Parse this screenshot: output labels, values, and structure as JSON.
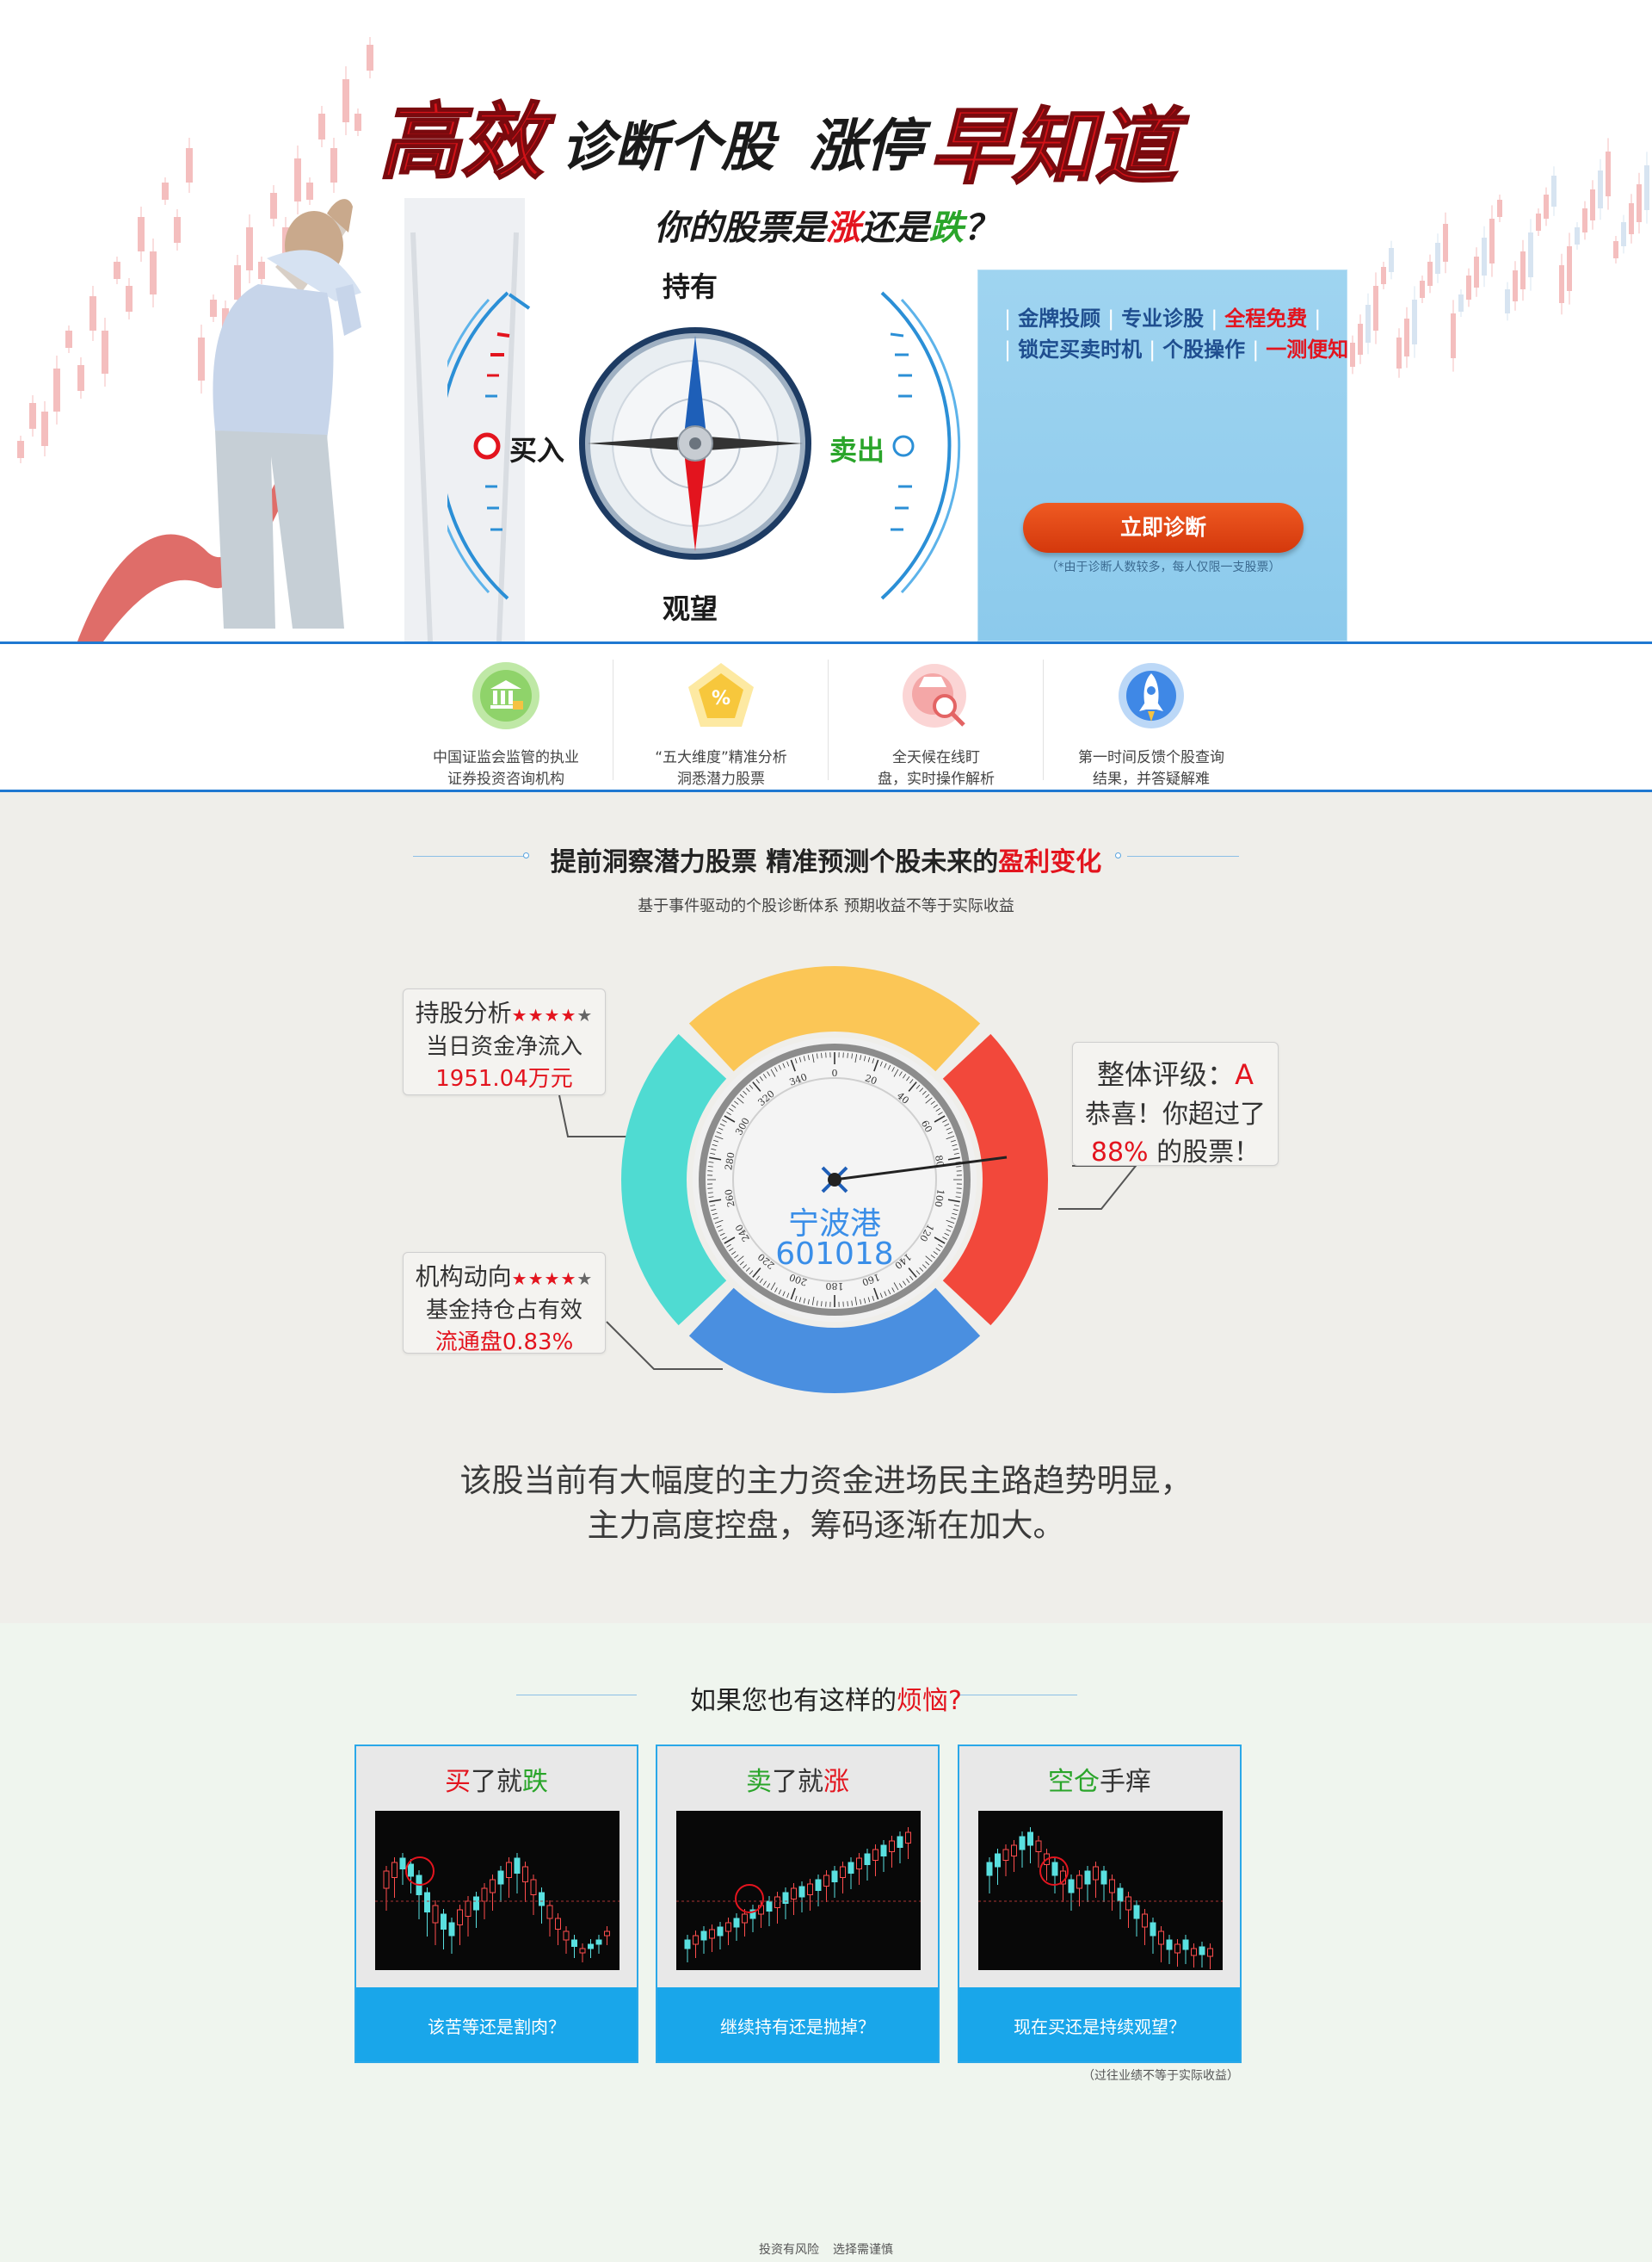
{
  "hero": {
    "title_part1": "高效",
    "title_part2": "诊断个股",
    "title_part3": "涨停",
    "title_part4": "早知道",
    "subtitle_pre": "你的股票是",
    "subtitle_up": "涨",
    "subtitle_mid": "还是",
    "subtitle_down": "跌",
    "subtitle_end": "？",
    "compass": {
      "hold": "持有",
      "buy": "买入",
      "sell": "卖出",
      "watch": "观望"
    },
    "promo": {
      "line1": [
        "金牌投顾",
        "专业诊股",
        "全程免费"
      ],
      "line2": [
        "锁定买卖时机",
        "个股操作",
        "一测便知"
      ],
      "button": "立即诊断",
      "note": "（*由于诊断人数较多，每人仅限一支股票）"
    }
  },
  "features": [
    {
      "icon": "bank-building-icon",
      "line1": "中国证监会监管的执业",
      "line2": "证券投资咨询机构"
    },
    {
      "icon": "percent-pentagon-icon",
      "line1": "“五大维度”精准分析",
      "line2": "洞悉潜力股票"
    },
    {
      "icon": "detective-magnifier-icon",
      "line1": "全天候在线盯",
      "line2": "盘，实时操作解析"
    },
    {
      "icon": "rocket-icon",
      "line1": "第一时间反馈个股查询",
      "line2": "结果，并答疑解难"
    }
  ],
  "diagnosis": {
    "title_pre": "提前洞察潜力股票 精准预测个股未来的",
    "title_red": "盈利变化",
    "subtitle": "基于事件驱动的个股诊断体系   预期收益不等于实际收益",
    "stock_name": "宁波港",
    "stock_code": "601018",
    "gauge_ticks": [
      "0",
      "20",
      "40",
      "60",
      "80",
      "100",
      "120",
      "140",
      "160",
      "180",
      "200",
      "220",
      "240",
      "260",
      "280",
      "300",
      "320",
      "340"
    ],
    "holding": {
      "title": "持股分析",
      "stars": "★★★★",
      "star_grey": "★",
      "line1": "当日资金净流入",
      "value": "1951.04万元"
    },
    "institution": {
      "title": "机构动向",
      "stars": "★★★★",
      "star_grey": "★",
      "line1": "基金持仓占有效",
      "value": "流通盘0.83%"
    },
    "rating": {
      "label": "整体评级：",
      "grade": "A",
      "line1": "恭喜！你超过了",
      "percent": "88%",
      "line2_suffix": " 的股票！"
    },
    "summary_line1": "该股当前有大幅度的主力资金进场民主路趋势明显，",
    "summary_line2": "主力高度控盘，筹码逐渐在加大。"
  },
  "problems": {
    "title_pre": "如果您也有这样的",
    "title_red": "烦恼?",
    "cards": [
      {
        "t1": "买",
        "t2": "了就",
        "t3": "跌",
        "button": "该苦等还是割肉？"
      },
      {
        "t1": "卖",
        "t2": "了就",
        "t3": "涨",
        "button": "继续持有还是抛掉？"
      },
      {
        "t1": "空仓",
        "t2": "手痒",
        "t3": "",
        "button": "现在买还是持续观望？"
      }
    ],
    "note": "（过往业绩不等于实际收益）"
  },
  "footer": {
    "left": "投资有风险",
    "right": "选择需谨慎"
  },
  "colors": {
    "brand_red": "#e3141e",
    "brand_blue": "#1f78d1",
    "accent_green": "#2aa52a",
    "button_orange": "#d4380c",
    "card_blue": "#19a6ea"
  }
}
